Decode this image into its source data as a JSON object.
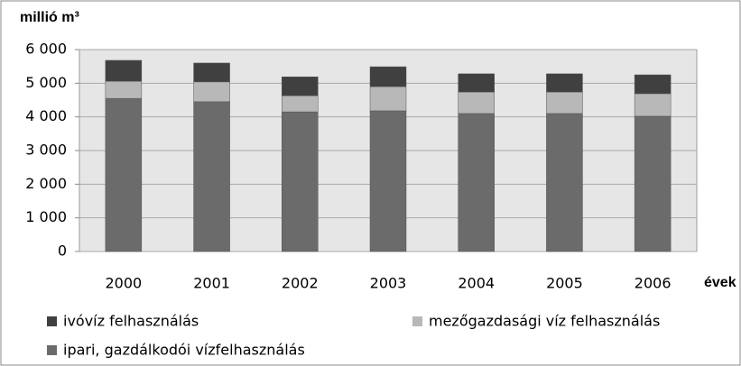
{
  "chart_data": {
    "type": "stacked-bar",
    "y_axis_label": "millió m³",
    "x_axis_label": "évek",
    "categories": [
      "2000",
      "2001",
      "2002",
      "2003",
      "2004",
      "2005",
      "2006"
    ],
    "series": [
      {
        "name": "ipari, gazdálkodói vízfelhasználás",
        "color": "#6b6b6b",
        "values": [
          4550,
          4450,
          4150,
          4180,
          4100,
          4100,
          4020
        ]
      },
      {
        "name": "mezőgazdasági víz felhasználás",
        "color": "#b8b8b8",
        "values": [
          510,
          590,
          480,
          720,
          640,
          640,
          670
        ]
      },
      {
        "name": "ivóvíz felhasználás",
        "color": "#404040",
        "values": [
          620,
          560,
          560,
          590,
          540,
          540,
          560
        ]
      }
    ],
    "ylim": [
      0,
      6000
    ],
    "yticks": [
      0,
      {
        "value": 1000,
        "label": "1 000"
      },
      {
        "value": 2000,
        "label": "2 000"
      },
      {
        "value": 3000,
        "label": "3 000"
      },
      {
        "value": 4000,
        "label": "4 000"
      },
      {
        "value": 5000,
        "label": "5 000"
      },
      {
        "value": 6000,
        "label": "6 000"
      }
    ],
    "grid": true
  }
}
